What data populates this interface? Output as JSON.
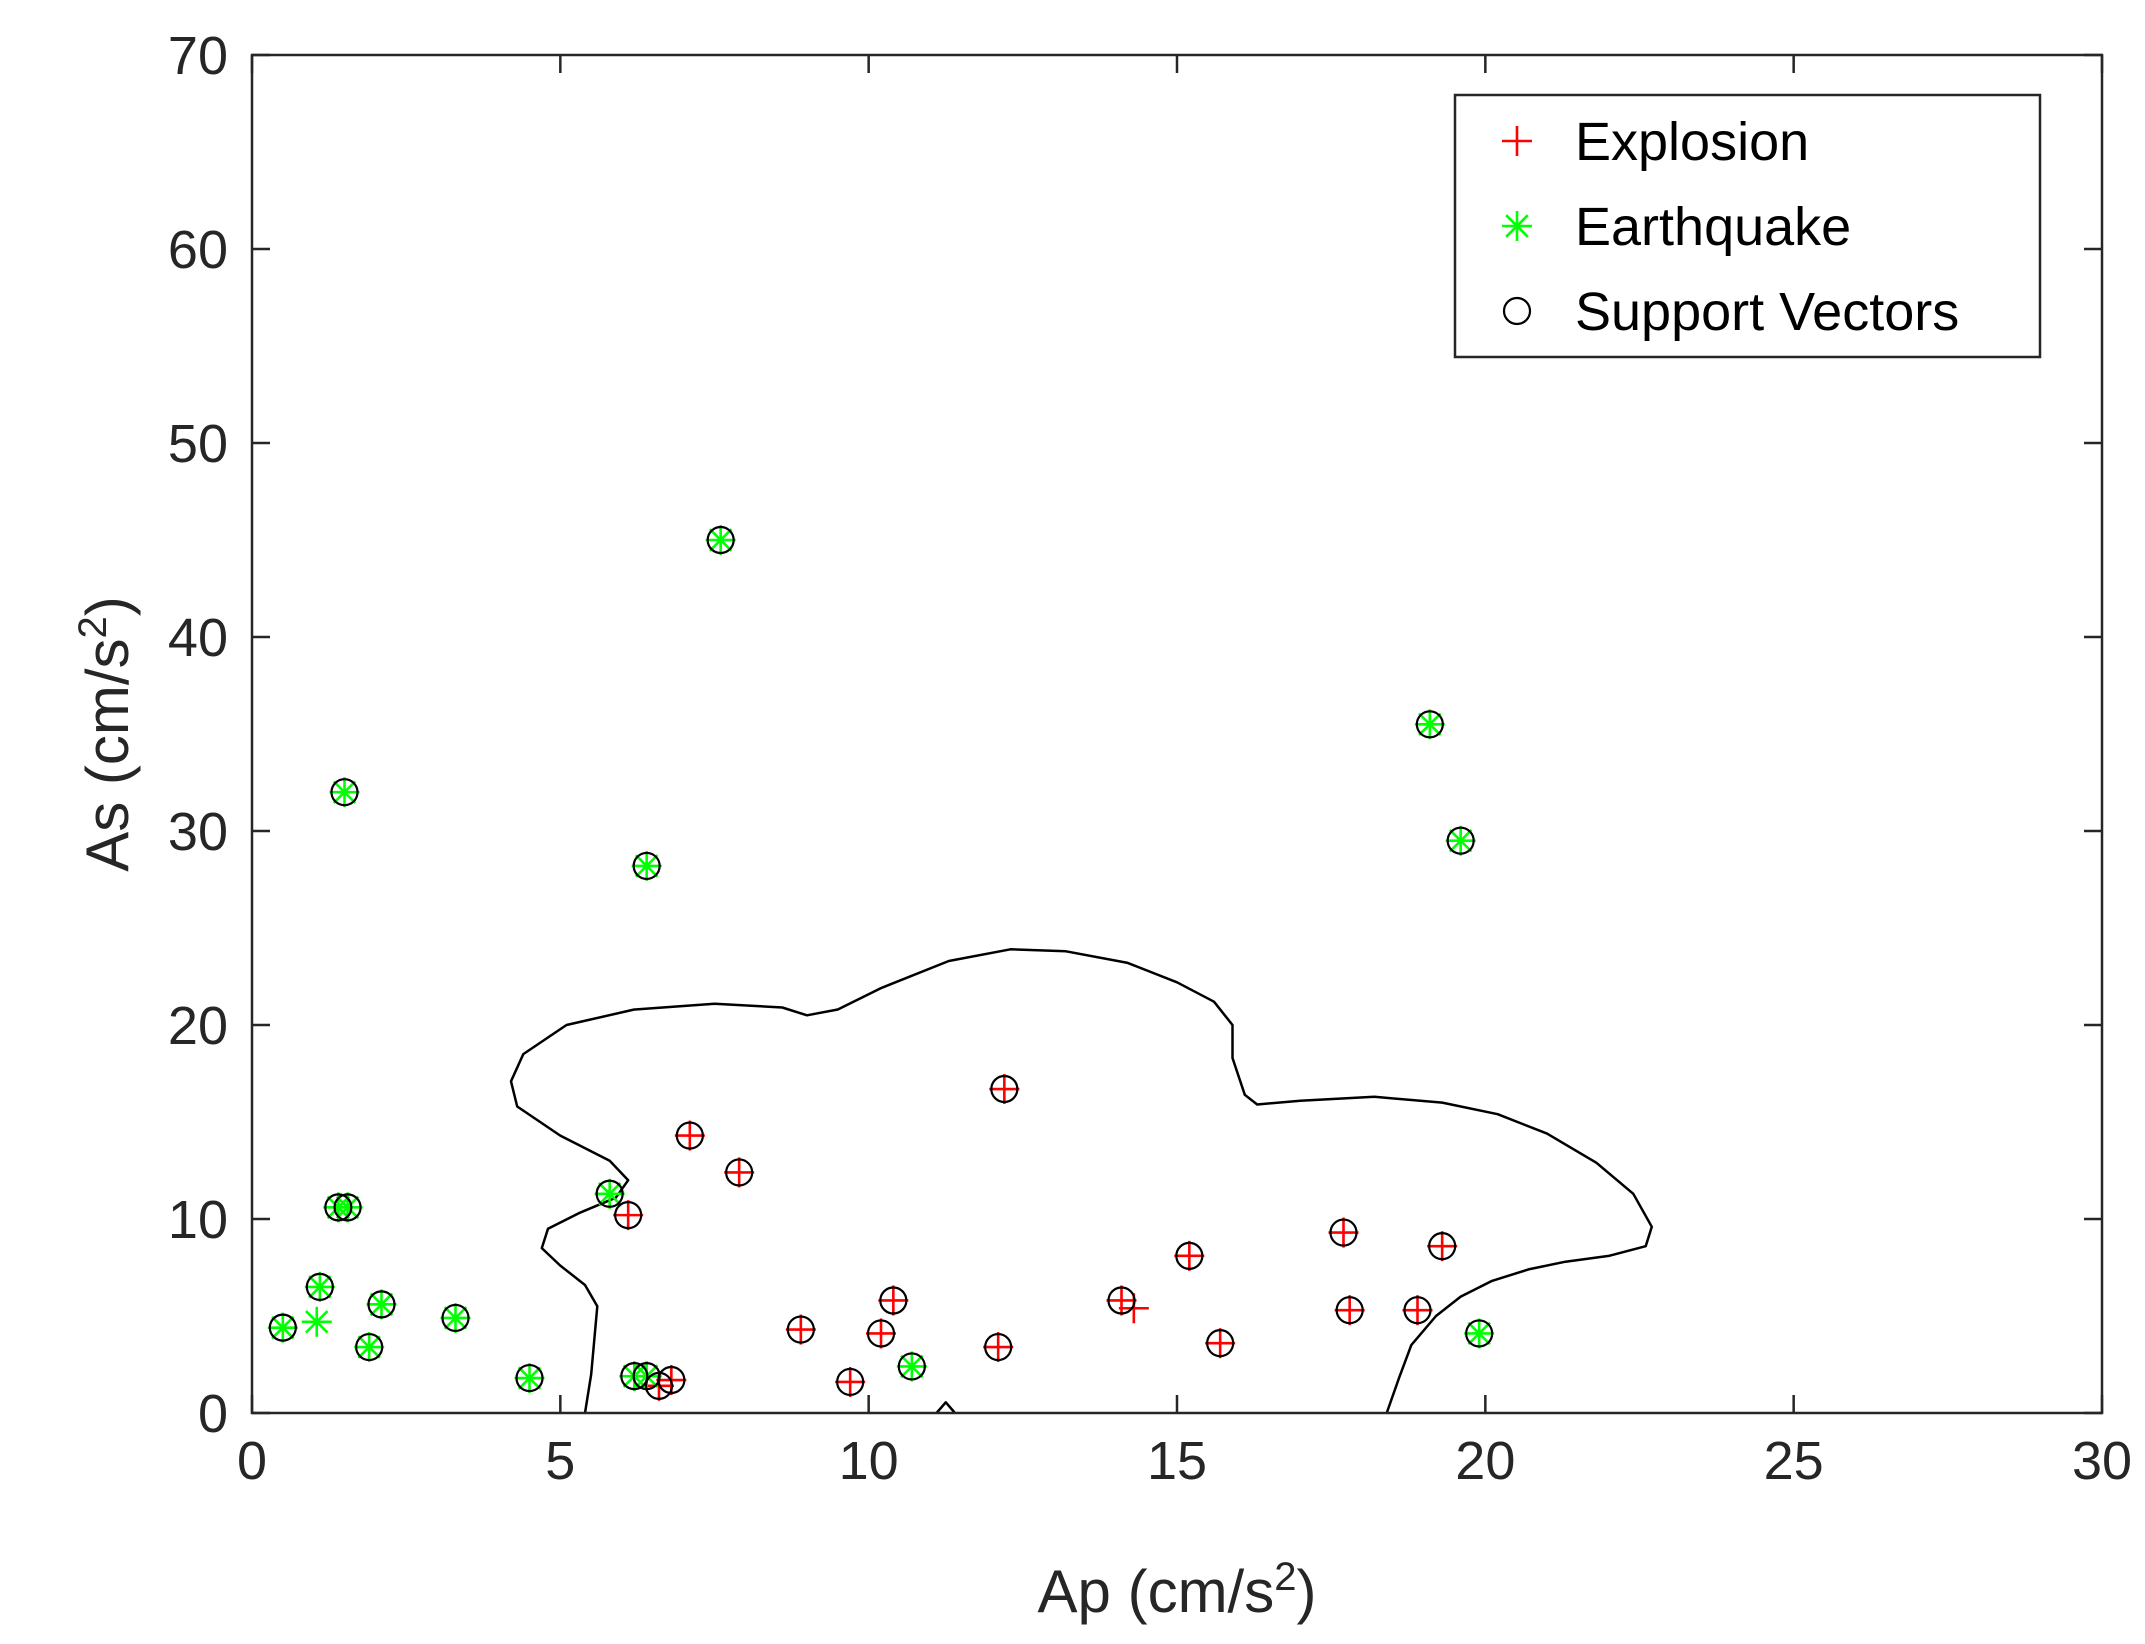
{
  "chart_data": {
    "type": "scatter",
    "title": "",
    "xlabel": "Ap (cm/s2)",
    "ylabel": "As (cm/s2)",
    "xlabel_parts": {
      "base": "Ap (cm/s",
      "sup": "2",
      "close": ")"
    },
    "ylabel_parts": {
      "base": "As (cm/s",
      "sup": "2",
      "close": ")"
    },
    "xlim": [
      0,
      30
    ],
    "ylim": [
      0,
      70
    ],
    "xticks": [
      "0",
      "5",
      "10",
      "15",
      "20",
      "25",
      "30"
    ],
    "yticks": [
      "0",
      "10",
      "20",
      "30",
      "40",
      "50",
      "60",
      "70"
    ],
    "grid": false,
    "legend_position": "top-right",
    "legend": [
      "Explosion",
      "Earthquake",
      "Support Vectors"
    ],
    "colors": {
      "explosion": "#ff0000",
      "earthquake": "#00ff00",
      "support": "#000000",
      "boundary": "#000000",
      "axis": "#262626"
    },
    "series": [
      {
        "name": "Explosion",
        "marker": "plus",
        "points": [
          [
            6.1,
            10.2
          ],
          [
            7.1,
            14.3
          ],
          [
            7.9,
            12.4
          ],
          [
            12.2,
            16.7
          ],
          [
            8.9,
            4.3
          ],
          [
            9.7,
            1.6
          ],
          [
            10.2,
            4.1
          ],
          [
            10.4,
            5.8
          ],
          [
            12.1,
            3.4
          ],
          [
            14.1,
            5.8
          ],
          [
            14.3,
            5.4
          ],
          [
            15.2,
            8.1
          ],
          [
            15.7,
            3.6
          ],
          [
            17.7,
            9.3
          ],
          [
            17.8,
            5.3
          ],
          [
            18.9,
            5.3
          ],
          [
            19.3,
            8.6
          ],
          [
            6.6,
            1.4
          ],
          [
            6.8,
            1.7
          ]
        ]
      },
      {
        "name": "Earthquake",
        "marker": "asterisk",
        "points": [
          [
            7.6,
            45.0
          ],
          [
            19.1,
            35.5
          ],
          [
            19.6,
            29.5
          ],
          [
            1.5,
            32.0
          ],
          [
            6.4,
            28.2
          ],
          [
            5.8,
            11.3
          ],
          [
            1.4,
            10.6
          ],
          [
            1.55,
            10.6
          ],
          [
            1.1,
            6.5
          ],
          [
            1.05,
            4.7
          ],
          [
            0.5,
            4.4
          ],
          [
            2.1,
            5.6
          ],
          [
            1.9,
            3.4
          ],
          [
            3.3,
            4.9
          ],
          [
            4.5,
            1.8
          ],
          [
            6.2,
            1.9
          ],
          [
            6.4,
            1.9
          ],
          [
            10.7,
            2.4
          ],
          [
            19.9,
            4.1
          ]
        ]
      },
      {
        "name": "Support Vectors",
        "marker": "circle",
        "points": [
          [
            6.1,
            10.2
          ],
          [
            7.1,
            14.3
          ],
          [
            7.9,
            12.4
          ],
          [
            12.2,
            16.7
          ],
          [
            8.9,
            4.3
          ],
          [
            9.7,
            1.6
          ],
          [
            10.2,
            4.1
          ],
          [
            10.4,
            5.8
          ],
          [
            12.1,
            3.4
          ],
          [
            14.1,
            5.8
          ],
          [
            15.2,
            8.1
          ],
          [
            15.7,
            3.6
          ],
          [
            17.7,
            9.3
          ],
          [
            17.8,
            5.3
          ],
          [
            18.9,
            5.3
          ],
          [
            19.3,
            8.6
          ],
          [
            6.6,
            1.4
          ],
          [
            6.8,
            1.7
          ],
          [
            7.6,
            45.0
          ],
          [
            19.1,
            35.5
          ],
          [
            19.6,
            29.5
          ],
          [
            1.5,
            32.0
          ],
          [
            6.4,
            28.2
          ],
          [
            5.8,
            11.3
          ],
          [
            1.4,
            10.6
          ],
          [
            1.55,
            10.6
          ],
          [
            1.1,
            6.5
          ],
          [
            0.5,
            4.4
          ],
          [
            2.1,
            5.6
          ],
          [
            1.9,
            3.4
          ],
          [
            3.3,
            4.9
          ],
          [
            4.5,
            1.8
          ],
          [
            6.2,
            1.9
          ],
          [
            6.4,
            1.9
          ],
          [
            10.7,
            2.4
          ],
          [
            19.9,
            4.1
          ]
        ]
      }
    ],
    "decision_boundary": [
      [
        [
          5.4,
          0.0
        ],
        [
          5.5,
          2.0
        ],
        [
          5.6,
          5.5
        ],
        [
          5.4,
          6.6
        ],
        [
          5.0,
          7.6
        ],
        [
          4.7,
          8.5
        ],
        [
          4.8,
          9.5
        ],
        [
          5.3,
          10.3
        ],
        [
          5.9,
          11.1
        ],
        [
          6.1,
          12.0
        ],
        [
          5.8,
          13.0
        ],
        [
          5.0,
          14.3
        ],
        [
          4.3,
          15.8
        ],
        [
          4.2,
          17.1
        ],
        [
          4.4,
          18.5
        ],
        [
          5.1,
          20.0
        ],
        [
          6.2,
          20.8
        ],
        [
          7.5,
          21.1
        ],
        [
          8.6,
          20.9
        ],
        [
          9.0,
          20.5
        ],
        [
          9.5,
          20.8
        ],
        [
          10.2,
          21.9
        ],
        [
          11.3,
          23.3
        ],
        [
          12.3,
          23.9
        ],
        [
          13.2,
          23.8
        ],
        [
          14.2,
          23.2
        ],
        [
          15.0,
          22.2
        ],
        [
          15.6,
          21.2
        ],
        [
          15.9,
          20.0
        ],
        [
          15.9,
          18.3
        ],
        [
          16.1,
          16.4
        ],
        [
          16.3,
          15.9
        ],
        [
          17.0,
          16.1
        ],
        [
          18.2,
          16.3
        ],
        [
          19.3,
          16.0
        ],
        [
          20.2,
          15.4
        ],
        [
          21.0,
          14.4
        ],
        [
          21.8,
          12.9
        ],
        [
          22.4,
          11.3
        ],
        [
          22.7,
          9.6
        ],
        [
          22.6,
          8.6
        ],
        [
          22.0,
          8.1
        ],
        [
          21.3,
          7.8
        ],
        [
          20.7,
          7.4
        ],
        [
          20.1,
          6.8
        ],
        [
          19.6,
          6.0
        ],
        [
          19.2,
          5.0
        ],
        [
          18.8,
          3.5
        ],
        [
          18.6,
          1.8
        ],
        [
          18.4,
          0.0
        ]
      ],
      [
        [
          11.1,
          0.0
        ],
        [
          11.25,
          0.55
        ],
        [
          11.4,
          0.0
        ]
      ]
    ]
  }
}
